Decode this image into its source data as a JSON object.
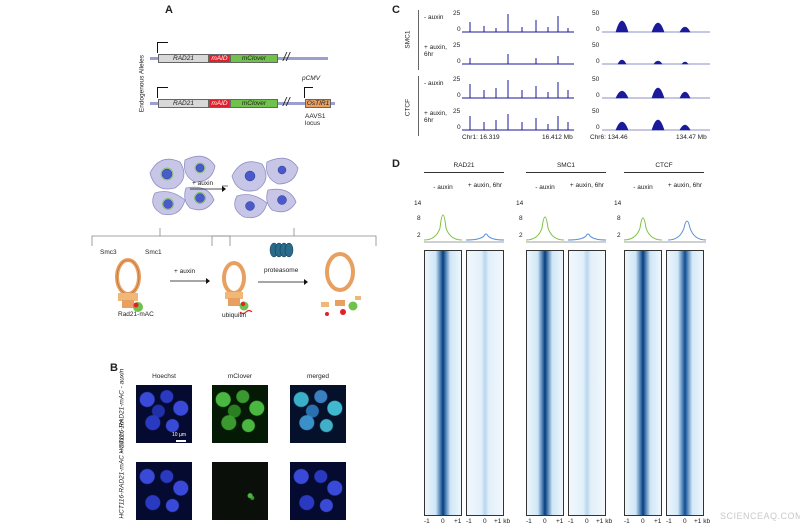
{
  "panels": {
    "a": "A",
    "b": "B",
    "c": "C",
    "d": "D"
  },
  "panel_a": {
    "side_label": "Endogenous Alleles",
    "allele1": {
      "rad21": "RAD21",
      "maid": "mAID",
      "mclover": "mClover"
    },
    "allele2": {
      "rad21": "RAD21",
      "maid": "mAID",
      "mclover": "mClover",
      "pcmv": "pCMV",
      "ostir1": "OsTIR1",
      "locus": "AAVS1 locus"
    },
    "auxin_top": "+ auxin",
    "smc3": "Smc3",
    "smc1": "Smc1",
    "auxin_bottom": "+ auxin",
    "proteasome": "proteasome",
    "rad21mac": "Rad21-mAC",
    "ubiquitin": "ubiquitin"
  },
  "panel_b": {
    "columns": [
      "Hoechst",
      "mClover",
      "merged"
    ],
    "row1_label": "HCT116-RAD21-mAC - auxin",
    "row2_label": "HCT116-RAD21-mAC + auxin, 1hr",
    "scale": "10 µm"
  },
  "panel_c": {
    "group_smc1": "SMC1",
    "group_ctcf": "CTCF",
    "row_labels": [
      "- auxin",
      "+ auxin, 6hr",
      "- auxin",
      "+ auxin, 6hr"
    ],
    "left_ticks": [
      "25",
      "0"
    ],
    "right_ticks": [
      "50",
      "0"
    ],
    "left_coord_start": "Chr1: 16.319",
    "left_coord_end": "16.412 Mb",
    "right_coord_start": "Chr6: 134.46",
    "right_coord_end": "134.47 Mb"
  },
  "panel_d": {
    "groups": [
      {
        "name": "RAD21",
        "cond1": "- auxin",
        "cond2": "+ auxin, 6hr"
      },
      {
        "name": "SMC1",
        "cond1": "- auxin",
        "cond2": "+ auxin, 6hr"
      },
      {
        "name": "CTCF",
        "cond1": "- auxin",
        "cond2": "+ auxin, 6hr"
      }
    ],
    "y_ticks": [
      "14",
      "8",
      "2"
    ],
    "x_ticks": [
      "-1",
      "0",
      "+1",
      "-1",
      "0",
      "+1 kb"
    ],
    "scale_min": "0",
    "scale_max": "30"
  },
  "watermark": "SCIENCEAQ.COM",
  "colors": {
    "maid": "#e0202a",
    "mclover": "#6fc24a",
    "ostir1": "#e8a060",
    "track": "#1a1a9a",
    "profile_minus": "#7dc142",
    "profile_plus": "#5b8fd6"
  }
}
